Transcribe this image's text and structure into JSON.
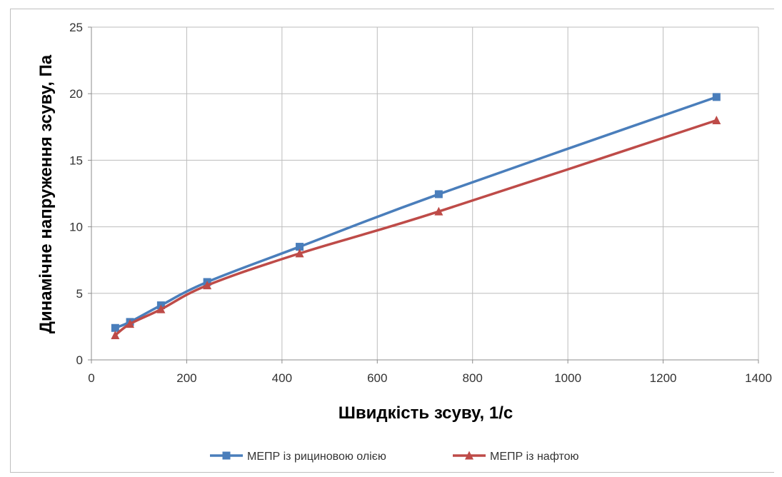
{
  "chart_data": {
    "type": "line",
    "title": "",
    "xlabel": "Швидкість зсуву, 1/с",
    "ylabel": "Динамічне напруження зсуву, Па",
    "xlim": [
      0,
      1400
    ],
    "ylim": [
      0,
      25
    ],
    "xticks": [
      0,
      200,
      400,
      600,
      800,
      1000,
      1200,
      1400
    ],
    "yticks": [
      0,
      5,
      10,
      15,
      20,
      25
    ],
    "grid": true,
    "legend_position": "bottom",
    "series": [
      {
        "name": "МЕПР із рициновою олією",
        "color": "#4a7ebb",
        "marker": "square",
        "x": [
          50,
          81,
          146,
          243,
          437,
          729,
          1312
        ],
        "y": [
          2.4,
          2.85,
          4.1,
          5.85,
          8.5,
          12.45,
          19.75
        ]
      },
      {
        "name": "МЕПР із нафтою",
        "color": "#be4b48",
        "marker": "triangle",
        "x": [
          50,
          81,
          146,
          243,
          437,
          729,
          1312
        ],
        "y": [
          1.85,
          2.7,
          3.8,
          5.6,
          8.0,
          11.15,
          18.0
        ]
      }
    ]
  }
}
